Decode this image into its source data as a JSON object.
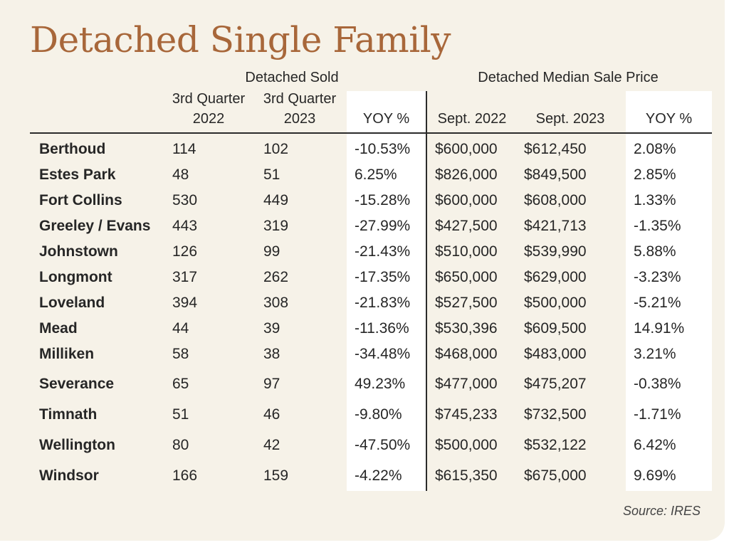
{
  "title": "Detached Single Family",
  "headers": {
    "group_sold": "Detached Sold",
    "group_price": "Detached Median Sale Price",
    "q3_2022_line1": "3rd Quarter",
    "q3_2022_line2": "2022",
    "q3_2023_line1": "3rd Quarter",
    "q3_2023_line2": "2023",
    "yoy_sold": "YOY %",
    "sept_2022": "Sept. 2022",
    "sept_2023": "Sept. 2023",
    "yoy_price": "YOY %"
  },
  "rows": [
    {
      "city": "Berthoud",
      "sold_2022": "114",
      "sold_2023": "102",
      "sold_yoy": "-10.53%",
      "price_2022": "$600,000",
      "price_2023": "$612,450",
      "price_yoy": "2.08%"
    },
    {
      "city": "Estes Park",
      "sold_2022": "48",
      "sold_2023": "51",
      "sold_yoy": "6.25%",
      "price_2022": "$826,000",
      "price_2023": "$849,500",
      "price_yoy": "2.85%"
    },
    {
      "city": "Fort Collins",
      "sold_2022": "530",
      "sold_2023": "449",
      "sold_yoy": "-15.28%",
      "price_2022": "$600,000",
      "price_2023": "$608,000",
      "price_yoy": "1.33%"
    },
    {
      "city": "Greeley / Evans",
      "sold_2022": "443",
      "sold_2023": "319",
      "sold_yoy": "-27.99%",
      "price_2022": "$427,500",
      "price_2023": "$421,713",
      "price_yoy": "-1.35%"
    },
    {
      "city": "Johnstown",
      "sold_2022": "126",
      "sold_2023": "99",
      "sold_yoy": "-21.43%",
      "price_2022": "$510,000",
      "price_2023": "$539,990",
      "price_yoy": "5.88%"
    },
    {
      "city": "Longmont",
      "sold_2022": "317",
      "sold_2023": "262",
      "sold_yoy": "-17.35%",
      "price_2022": "$650,000",
      "price_2023": "$629,000",
      "price_yoy": "-3.23%"
    },
    {
      "city": "Loveland",
      "sold_2022": "394",
      "sold_2023": "308",
      "sold_yoy": "-21.83%",
      "price_2022": "$527,500",
      "price_2023": "$500,000",
      "price_yoy": "-5.21%"
    },
    {
      "city": "Mead",
      "sold_2022": "44",
      "sold_2023": "39",
      "sold_yoy": "-11.36%",
      "price_2022": "$530,396",
      "price_2023": "$609,500",
      "price_yoy": "14.91%"
    },
    {
      "city": "Milliken",
      "sold_2022": "58",
      "sold_2023": "38",
      "sold_yoy": "-34.48%",
      "price_2022": "$468,000",
      "price_2023": "$483,000",
      "price_yoy": "3.21%"
    },
    {
      "city": "Severance",
      "sold_2022": "65",
      "sold_2023": "97",
      "sold_yoy": "49.23%",
      "price_2022": "$477,000",
      "price_2023": "$475,207",
      "price_yoy": "-0.38%"
    },
    {
      "city": "Timnath",
      "sold_2022": "51",
      "sold_2023": "46",
      "sold_yoy": "-9.80%",
      "price_2022": "$745,233",
      "price_2023": "$732,500",
      "price_yoy": "-1.71%"
    },
    {
      "city": "Wellington",
      "sold_2022": "80",
      "sold_2023": "42",
      "sold_yoy": "-47.50%",
      "price_2022": "$500,000",
      "price_2023": "$532,122",
      "price_yoy": "6.42%"
    },
    {
      "city": "Windsor",
      "sold_2022": "166",
      "sold_2023": "159",
      "sold_yoy": "-4.22%",
      "price_2022": "$615,350",
      "price_2023": "$675,000",
      "price_yoy": "9.69%"
    }
  ],
  "source": "Source: IRES",
  "colors": {
    "title": "#a8673a",
    "background": "#f6f2e8",
    "band": "#ffffff",
    "text": "#262626"
  }
}
